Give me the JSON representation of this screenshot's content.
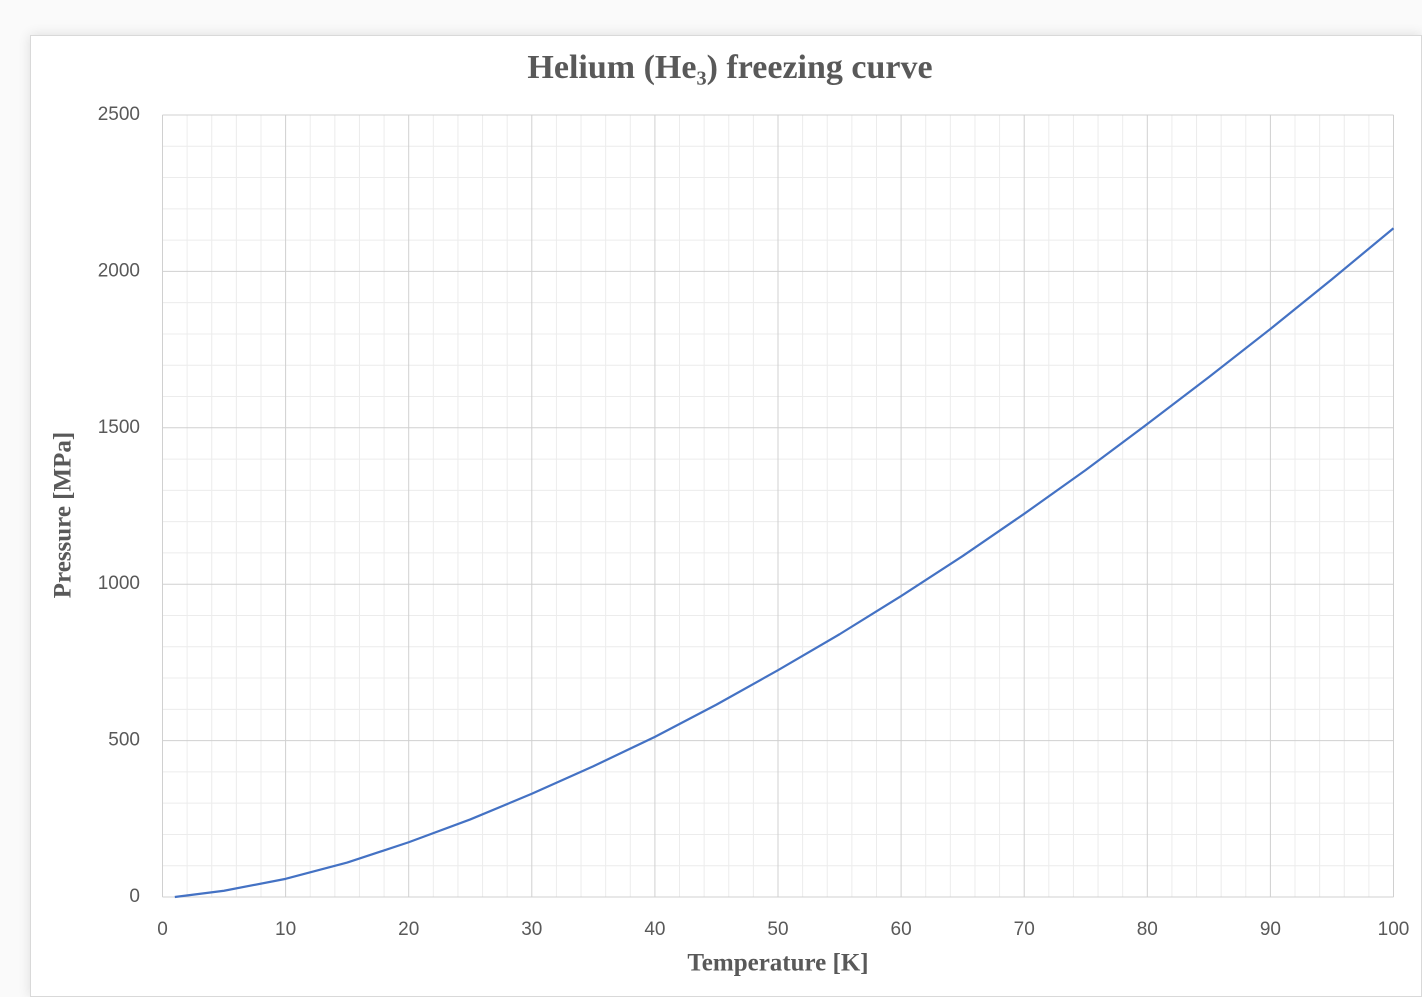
{
  "chart_data": {
    "type": "line",
    "title": "Helium (He₃) freezing curve",
    "x_label": "Temperature [K]",
    "y_label": "Pressure [MPa]",
    "x": [
      1,
      5,
      10,
      15,
      20,
      25,
      30,
      35,
      40,
      45,
      50,
      55,
      60,
      65,
      70,
      75,
      80,
      85,
      90,
      95,
      100
    ],
    "values": [
      0,
      20,
      58,
      110,
      175,
      248,
      330,
      418,
      512,
      615,
      725,
      840,
      962,
      1090,
      1225,
      1365,
      1512,
      1662,
      1816,
      1975,
      2138
    ],
    "color": "#4472c4",
    "xlim": [
      0,
      100
    ],
    "xticks": [
      0,
      10,
      20,
      30,
      40,
      50,
      60,
      70,
      80,
      90,
      100
    ],
    "ylim": [
      0,
      2500
    ],
    "yticks": [
      0,
      500,
      1000,
      1500,
      2000,
      2500
    ],
    "grid": true,
    "minor_grid": true
  }
}
